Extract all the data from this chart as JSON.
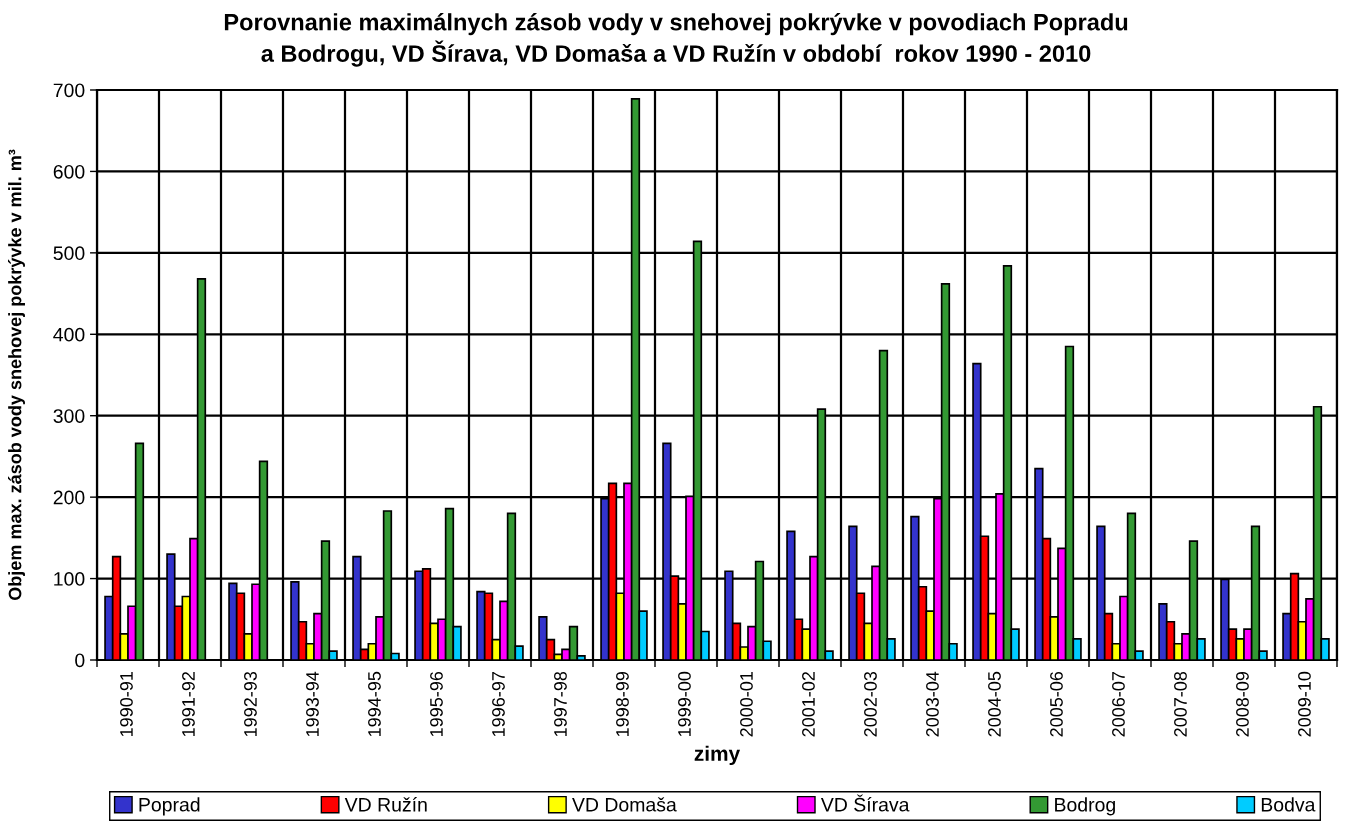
{
  "chart_data": {
    "type": "bar",
    "title": "Porovnanie maximálnych zásob vody v snehovej pokrývke v povodiach Popradu\na Bodrogu, VD Šírava, VD Domaša a VD Ružín v období  rokov 1990 - 2010",
    "xlabel": "zimy",
    "ylabel": "Objem max. zásob vody snehovej pokrývke v mil. m³",
    "categories": [
      "1990-91",
      "1991-92",
      "1992-93",
      "1993-94",
      "1994-95",
      "1995-96",
      "1996-97",
      "1997-98",
      "1998-99",
      "1999-00",
      "2000-01",
      "2001-02",
      "2002-03",
      "2003-04",
      "2004-05",
      "2005-06",
      "2006-07",
      "2007-08",
      "2008-09",
      "2009-10"
    ],
    "series": [
      {
        "name": "Poprad",
        "color": "#3333cc",
        "values": [
          78,
          130,
          94,
          96,
          127,
          109,
          84,
          53,
          198,
          266,
          109,
          158,
          164,
          176,
          364,
          235,
          164,
          69,
          99,
          57
        ]
      },
      {
        "name": "VD Ružín",
        "color": "#ff0000",
        "values": [
          127,
          66,
          82,
          47,
          13,
          112,
          82,
          25,
          217,
          103,
          45,
          50,
          82,
          90,
          152,
          149,
          57,
          47,
          38,
          106
        ]
      },
      {
        "name": "VD Domaša",
        "color": "#ffff00",
        "values": [
          32,
          78,
          32,
          20,
          20,
          45,
          25,
          7,
          82,
          69,
          16,
          38,
          45,
          60,
          57,
          53,
          20,
          20,
          26,
          47
        ]
      },
      {
        "name": "VD Šírava",
        "color": "#ff00ff",
        "values": [
          66,
          149,
          93,
          57,
          53,
          50,
          72,
          13,
          217,
          201,
          41,
          127,
          115,
          198,
          204,
          137,
          78,
          32,
          38,
          75
        ]
      },
      {
        "name": "Bodrog",
        "color": "#339933",
        "values": [
          266,
          468,
          244,
          146,
          183,
          186,
          180,
          41,
          689,
          514,
          121,
          308,
          380,
          462,
          484,
          385,
          180,
          146,
          164,
          311
        ]
      },
      {
        "name": "Bodva",
        "color": "#00ccff",
        "values": [
          null,
          null,
          null,
          11,
          8,
          41,
          17,
          5,
          60,
          35,
          23,
          11,
          26,
          20,
          38,
          26,
          11,
          26,
          11,
          26
        ]
      }
    ],
    "ylim": [
      0,
      700
    ],
    "yticks": [
      0,
      100,
      200,
      300,
      400,
      500,
      600,
      700
    ],
    "grid": true,
    "legend": "bottom"
  }
}
